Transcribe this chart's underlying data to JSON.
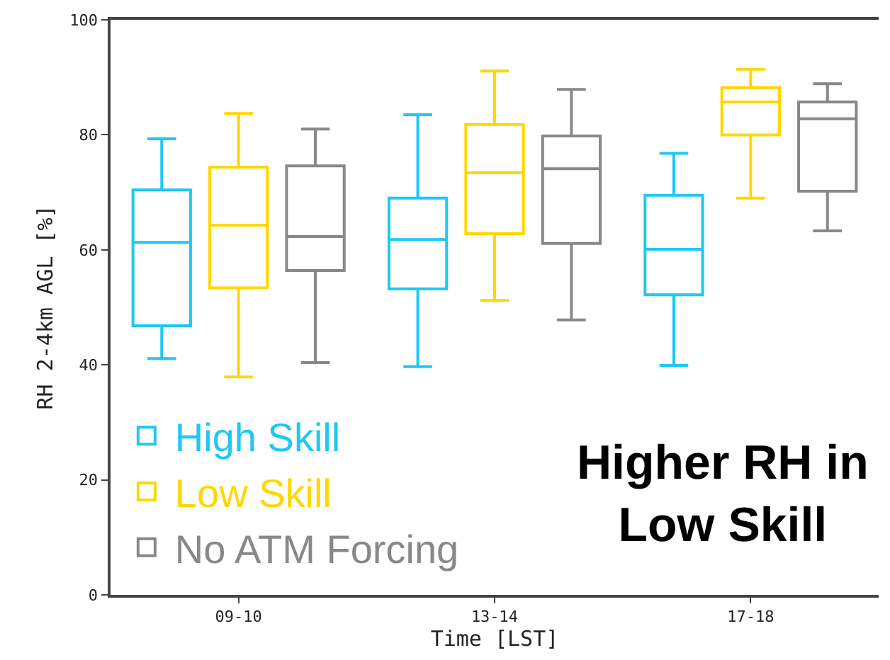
{
  "chart_data": {
    "type": "box",
    "xlabel": "Time [LST]",
    "ylabel": "RH 2-4km AGL [%]",
    "categories": [
      "09-10",
      "13-14",
      "17-18"
    ],
    "ylim": [
      0,
      100
    ],
    "yticks": [
      0,
      20,
      40,
      60,
      80,
      100
    ],
    "legend": "bottom left",
    "annotations": [
      "Higher RH in\nLow Skill"
    ],
    "series": [
      {
        "name": "High Skill",
        "color": "#1ec8f5",
        "boxes": [
          {
            "low": 41.1,
            "q1": 46.8,
            "median": 61.3,
            "q3": 70.4,
            "high": 79.3
          },
          {
            "low": 39.7,
            "q1": 53.2,
            "median": 61.8,
            "q3": 69.0,
            "high": 83.5
          },
          {
            "low": 39.9,
            "q1": 52.2,
            "median": 60.1,
            "q3": 69.5,
            "high": 76.8
          }
        ]
      },
      {
        "name": "Low Skill",
        "color": "#ffd700",
        "boxes": [
          {
            "low": 37.9,
            "q1": 53.4,
            "median": 64.3,
            "q3": 74.4,
            "high": 83.7
          },
          {
            "low": 51.2,
            "q1": 62.8,
            "median": 73.4,
            "q3": 81.8,
            "high": 91.1
          },
          {
            "low": 69.0,
            "q1": 80.0,
            "median": 85.7,
            "q3": 88.2,
            "high": 91.4
          }
        ]
      },
      {
        "name": "No ATM Forcing",
        "color": "#888888",
        "boxes": [
          {
            "low": 40.4,
            "q1": 56.4,
            "median": 62.3,
            "q3": 74.6,
            "high": 81.0
          },
          {
            "low": 47.8,
            "q1": 61.1,
            "median": 74.1,
            "q3": 79.8,
            "high": 87.9
          },
          {
            "low": 63.3,
            "q1": 70.2,
            "median": 82.8,
            "q3": 85.7,
            "high": 88.9
          }
        ]
      }
    ]
  }
}
